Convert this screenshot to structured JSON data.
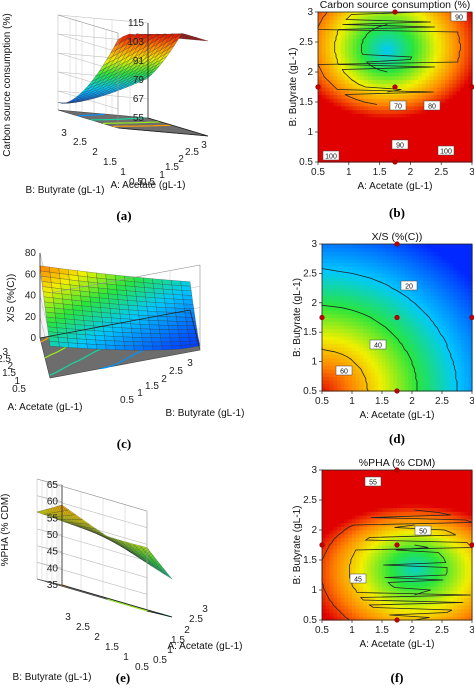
{
  "chart_data": [
    {
      "type": "surface3d",
      "panel": "(a)",
      "zlabel": "Carbon source consumption (%)",
      "xlabel": "A: Acetate (gL-1)",
      "ylabel": "B: Butyrate (gL-1)",
      "zticks": [
        "55",
        "67",
        "79",
        "91",
        "103",
        "115"
      ],
      "xticks": [
        "0.5",
        "1",
        "1.5",
        "2",
        "2.5",
        "3"
      ],
      "yticks": [
        "0.5",
        "1",
        "1.5",
        "2",
        "2.5",
        "3"
      ],
      "zlim": [
        55,
        115
      ],
      "xlim": [
        0.5,
        3
      ],
      "ylim": [
        0.5,
        3
      ],
      "colormap": "blue-green-yellow-red"
    },
    {
      "type": "contour",
      "panel": "(b)",
      "title": "Carbon source consumption (%)",
      "xlabel": "A: Acetate (gL-1)",
      "ylabel": "B: Butyrate (gL-1)",
      "xticks": [
        "0.5",
        "1",
        "1.5",
        "2",
        "2.5",
        "3"
      ],
      "yticks": [
        "0.5",
        "1",
        "1.5",
        "2",
        "2.5",
        "3"
      ],
      "xlim": [
        0.5,
        3
      ],
      "ylim": [
        0.5,
        3
      ],
      "contour_labels": [
        "90",
        "70",
        "80",
        "90",
        "100",
        "100"
      ]
    },
    {
      "type": "surface3d",
      "panel": "(c)",
      "zlabel": "X/S (%(C))",
      "xlabel": "A: Acetate (gL-1)",
      "ylabel": "B: Butyrate (gL-1)",
      "zticks": [
        "0",
        "20",
        "40",
        "60",
        "80"
      ],
      "xticks": [
        "0.5",
        "1",
        "1.5",
        "2",
        "2.5",
        "3"
      ],
      "yticks": [
        "0.5",
        "1",
        "1.5",
        "2",
        "2.5",
        "3"
      ],
      "zlim": [
        0,
        80
      ],
      "xlim": [
        0.5,
        3
      ],
      "ylim": [
        0.5,
        3
      ],
      "colormap": "blue-green-yellow-red"
    },
    {
      "type": "contour",
      "panel": "(d)",
      "title": "X/S (%(C))",
      "xlabel": "A: Acetate (gL-1)",
      "ylabel": "B: Butyrate (gL-1)",
      "xticks": [
        "0.5",
        "1",
        "1.5",
        "2",
        "2.5",
        "3"
      ],
      "yticks": [
        "0.5",
        "1",
        "1.5",
        "2",
        "2.5",
        "3"
      ],
      "xlim": [
        0.5,
        3
      ],
      "ylim": [
        0.5,
        3
      ],
      "contour_labels": [
        "20",
        "40",
        "60"
      ]
    },
    {
      "type": "surface3d",
      "panel": "(e)",
      "zlabel": "%PHA (% CDM)",
      "xlabel": "A: Acetate (gL-1)",
      "ylabel": "B: Butyrate (gL-1)",
      "zticks": [
        "35",
        "40",
        "45",
        "50",
        "55",
        "60",
        "65"
      ],
      "xticks": [
        "0.5",
        "1",
        "1.5",
        "2",
        "2.5",
        "3"
      ],
      "yticks": [
        "0.5",
        "1",
        "1.5",
        "2",
        "2.5",
        "3"
      ],
      "zlim": [
        35,
        65
      ],
      "xlim": [
        0.5,
        3
      ],
      "ylim": [
        0.5,
        3
      ],
      "colormap": "blue-green-yellow-red"
    },
    {
      "type": "contour",
      "panel": "(f)",
      "title": "%PHA (% CDM)",
      "xlabel": "A: Acetate (gL-1)",
      "ylabel": "B: Butyrate (gL-1)",
      "xticks": [
        "0.5",
        "1",
        "1.5",
        "2",
        "2.5",
        "3"
      ],
      "yticks": [
        "0.5",
        "1",
        "1.5",
        "2",
        "2.5",
        "3"
      ],
      "xlim": [
        0.5,
        3
      ],
      "ylim": [
        0.5,
        3
      ],
      "contour_labels": [
        "55",
        "50",
        "45"
      ]
    }
  ]
}
